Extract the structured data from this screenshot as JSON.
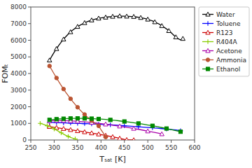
{
  "chart_data": {
    "type": "line",
    "xlabel": "Tₛₐₜ  [K]",
    "ylabel": "FOMₜ",
    "xlim": [
      250,
      600
    ],
    "ylim": [
      0,
      8000
    ],
    "xticks": [
      250,
      300,
      350,
      400,
      450,
      500,
      550,
      600
    ],
    "yticks": [
      0,
      1000,
      2000,
      3000,
      4000,
      5000,
      6000,
      7000,
      8000
    ],
    "grid": false,
    "legend": "upper right",
    "series": [
      {
        "name": "Water",
        "color": "#000000",
        "marker": "triangle",
        "x": [
          290,
          295,
          300,
          305,
          310,
          315,
          320,
          325,
          330,
          335,
          340,
          345,
          350,
          355,
          360,
          365,
          370,
          375,
          380,
          385,
          390,
          395,
          400,
          405,
          410,
          415,
          420,
          425,
          430,
          435,
          440,
          445,
          450,
          455,
          460,
          465,
          470,
          475,
          480,
          485,
          490,
          495,
          500,
          505,
          510,
          515,
          520,
          525,
          530,
          535,
          540,
          545,
          550,
          555,
          560,
          565,
          570,
          575
        ],
        "values": [
          4800,
          5050,
          5280,
          5490,
          5700,
          5890,
          6060,
          6220,
          6370,
          6500,
          6620,
          6720,
          6820,
          6900,
          6980,
          7050,
          7110,
          7160,
          7210,
          7250,
          7290,
          7320,
          7340,
          7360,
          7380,
          7400,
          7420,
          7430,
          7440,
          7450,
          7455,
          7450,
          7450,
          7440,
          7440,
          7430,
          7420,
          7400,
          7380,
          7360,
          7330,
          7300,
          7260,
          7210,
          7160,
          7100,
          7030,
          6960,
          6870,
          6780,
          6680,
          6570,
          6450,
          6320,
          6190,
          6090,
          6020,
          6100
        ]
      },
      {
        "name": "Toluene",
        "color": "#0000ff",
        "marker": "plus",
        "x": [
          290,
          295,
          300,
          305,
          310,
          315,
          320,
          325,
          330,
          335,
          340,
          345,
          350,
          355,
          360,
          365,
          370,
          375,
          380,
          385,
          390,
          395,
          400,
          410,
          420,
          430,
          440,
          450,
          460,
          470,
          480,
          490,
          500,
          510,
          520,
          530,
          540,
          550,
          560,
          570,
          575
        ],
        "values": [
          1060,
          1055,
          1050,
          1045,
          1040,
          1035,
          1030,
          1025,
          1020,
          1015,
          1010,
          1005,
          1000,
          995,
          990,
          985,
          980,
          975,
          970,
          965,
          958,
          950,
          940,
          925,
          910,
          895,
          875,
          855,
          835,
          815,
          795,
          775,
          755,
          735,
          710,
          685,
          660,
          630,
          600,
          565,
          545
        ]
      },
      {
        "name": "R123",
        "color": "#cc0000",
        "marker": "triangle",
        "x": [
          290,
          295,
          300,
          305,
          310,
          315,
          320,
          325,
          330,
          335,
          340,
          345,
          350,
          355,
          360,
          365,
          370,
          375,
          380,
          385,
          390,
          395,
          400,
          405,
          410,
          415,
          420,
          425,
          430,
          435,
          440,
          445,
          450,
          455,
          460,
          465,
          470
        ],
        "values": [
          800,
          780,
          760,
          740,
          720,
          700,
          680,
          660,
          638,
          616,
          594,
          572,
          550,
          528,
          506,
          484,
          462,
          440,
          418,
          396,
          374,
          352,
          325,
          298,
          272,
          246,
          220,
          190,
          160,
          128,
          96,
          64,
          32,
          15,
          8,
          4,
          2
        ]
      },
      {
        "name": "R404A",
        "color": "#88cc00",
        "marker": "plus",
        "x": [
          270,
          275,
          280,
          285,
          290,
          295,
          300,
          305,
          310,
          315,
          320,
          325,
          330,
          335,
          340,
          345,
          350
        ],
        "values": [
          1000,
          960,
          915,
          860,
          800,
          735,
          665,
          590,
          510,
          430,
          355,
          280,
          215,
          155,
          105,
          65,
          35
        ]
      },
      {
        "name": "Acetone",
        "color": "#aa00aa",
        "marker": "triangle",
        "x": [
          290,
          295,
          300,
          305,
          310,
          315,
          320,
          325,
          330,
          335,
          340,
          345,
          350,
          360,
          370,
          380,
          390,
          400,
          410,
          420,
          430,
          440,
          450,
          460,
          470,
          480,
          490,
          500,
          510,
          520,
          530
        ],
        "values": [
          1150,
          1158,
          1163,
          1165,
          1166,
          1165,
          1163,
          1160,
          1156,
          1150,
          1143,
          1135,
          1125,
          1103,
          1079,
          1052,
          1022,
          988,
          950,
          912,
          872,
          830,
          786,
          740,
          692,
          642,
          590,
          536,
          480,
          422,
          362
        ]
      },
      {
        "name": "Ammonia",
        "color": "#bb5533",
        "marker": "circle",
        "x": [
          290,
          295,
          300,
          305,
          310,
          315,
          320,
          325,
          330,
          335,
          340,
          345,
          350,
          355,
          360,
          365,
          370,
          375,
          380,
          385,
          390,
          395,
          400,
          405,
          410
        ],
        "values": [
          4450,
          4210,
          3970,
          3730,
          3500,
          3280,
          3065,
          2860,
          2665,
          2478,
          2300,
          2130,
          1968,
          1815,
          1670,
          1533,
          1403,
          1280,
          1165,
          1055,
          950,
          848,
          620,
          420,
          180
        ]
      },
      {
        "name": "Ethanol",
        "color": "#008800",
        "marker": "square",
        "x": [
          290,
          295,
          300,
          305,
          310,
          315,
          320,
          325,
          330,
          335,
          340,
          345,
          350,
          355,
          360,
          365,
          370,
          375,
          380,
          385,
          390,
          395,
          400,
          410,
          420,
          430,
          440,
          450,
          460,
          470,
          480,
          490,
          500,
          510,
          520,
          530,
          540,
          550,
          560,
          570
        ],
        "values": [
          1210,
          1225,
          1240,
          1252,
          1263,
          1272,
          1280,
          1286,
          1291,
          1295,
          1298,
          1300,
          1300,
          1300,
          1299,
          1297,
          1294,
          1290,
          1285,
          1279,
          1272,
          1264,
          1255,
          1233,
          1208,
          1180,
          1148,
          1114,
          1077,
          1037,
          995,
          950,
          903,
          854,
          802,
          748,
          690,
          630,
          565,
          498
        ]
      }
    ]
  }
}
